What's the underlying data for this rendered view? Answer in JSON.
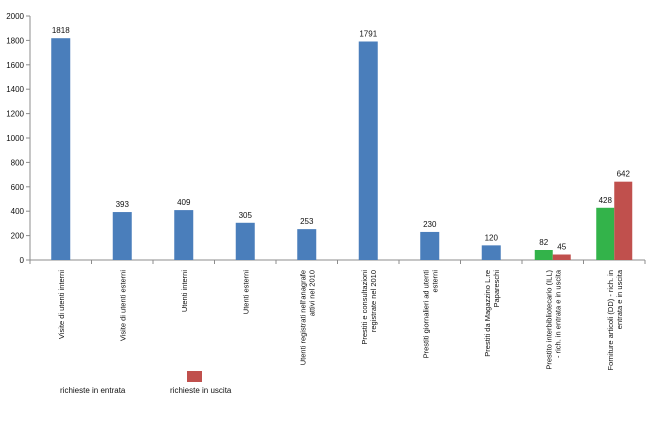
{
  "chart_data": {
    "type": "bar",
    "title": "",
    "xlabel": "",
    "ylabel": "",
    "ylim": [
      0,
      2000
    ],
    "yticks": [
      0,
      200,
      400,
      600,
      800,
      1000,
      1200,
      1400,
      1600,
      1800,
      2000
    ],
    "grid": false,
    "legend": "bottom-left",
    "categories": [
      "Visite di utenti interni",
      "Visite di utenti esterni",
      "Utenti interni",
      "Utenti esterni",
      "Utenti registrati nell'anagrafe attivi nel 2010",
      "Prestiti e consultazioni registrate nel 2010",
      "Prestiti giornalieri ad utenti esterni",
      "Prestiti da Magazzino L.re Papareschi",
      "Prestito interbibliotecario (ILL) - rich. in entrata e in uscita",
      "Forniture articoli (DD) - rich. in entrata e in uscita"
    ],
    "series": [
      {
        "name": "richieste in entrata",
        "color": "#4a7ebb",
        "values": [
          1818,
          393,
          409,
          305,
          253,
          1791,
          230,
          120,
          null,
          null
        ]
      },
      {
        "name": "richieste in entrata",
        "color": "#33b34a",
        "values": [
          null,
          null,
          null,
          null,
          null,
          null,
          null,
          null,
          82,
          428
        ]
      },
      {
        "name": "richieste in uscita",
        "color": "#c0504d",
        "values": [
          null,
          null,
          null,
          null,
          null,
          null,
          null,
          null,
          45,
          642
        ]
      }
    ],
    "legend_entries": [
      {
        "label": "richieste in entrata",
        "color": "#33b34a",
        "show_swatch": false
      },
      {
        "label": "richieste in uscita",
        "color": "#c0504d",
        "show_swatch": true
      }
    ]
  }
}
